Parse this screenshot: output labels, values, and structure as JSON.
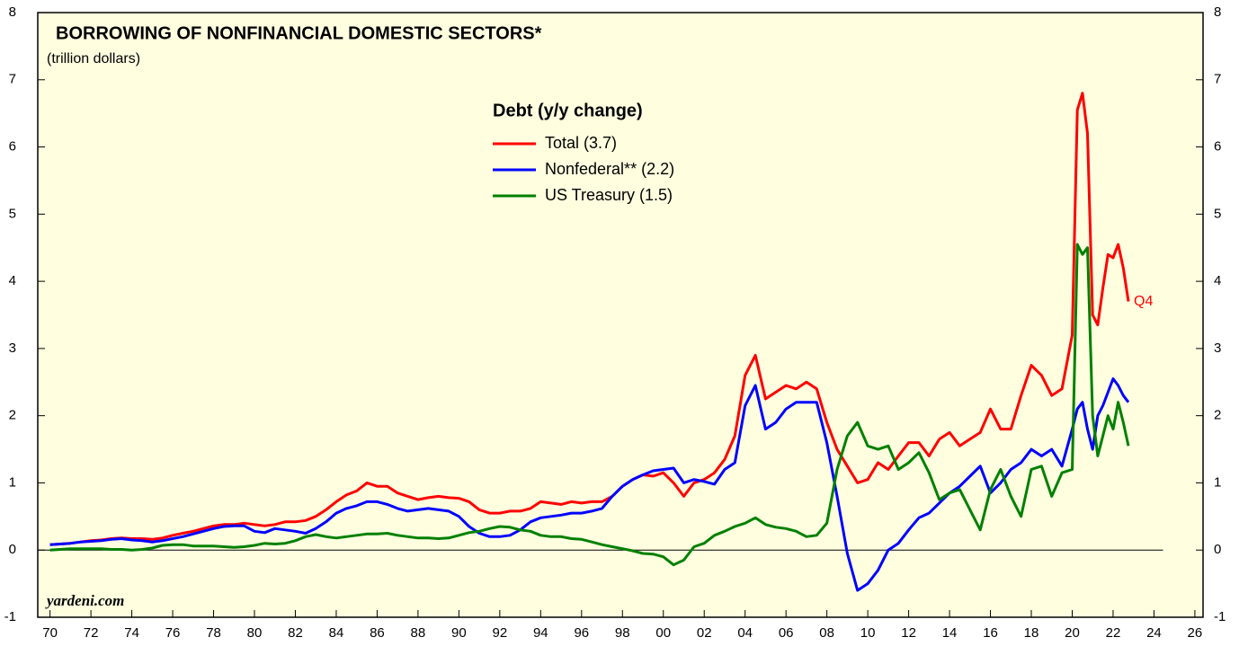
{
  "chart_data": {
    "type": "line",
    "title": "BORROWING OF NONFINANCIAL DOMESTIC SECTORS*",
    "subtitle": "(trillion dollars)",
    "legend_title": "Debt (y/y change)",
    "legend": "upper center",
    "source": "yardeni.com",
    "annotation": "Q4",
    "hline": 0,
    "xlim": [
      1969.4,
      2026.4
    ],
    "ylim": [
      -1,
      8
    ],
    "yticks": [
      -1,
      0,
      1,
      2,
      3,
      4,
      5,
      6,
      7,
      8
    ],
    "xticks": [
      {
        "value": 1970,
        "label": "70"
      },
      {
        "value": 1972,
        "label": "72"
      },
      {
        "value": 1974,
        "label": "74"
      },
      {
        "value": 1976,
        "label": "76"
      },
      {
        "value": 1978,
        "label": "78"
      },
      {
        "value": 1980,
        "label": "80"
      },
      {
        "value": 1982,
        "label": "82"
      },
      {
        "value": 1984,
        "label": "84"
      },
      {
        "value": 1986,
        "label": "86"
      },
      {
        "value": 1988,
        "label": "88"
      },
      {
        "value": 1990,
        "label": "90"
      },
      {
        "value": 1992,
        "label": "92"
      },
      {
        "value": 1994,
        "label": "94"
      },
      {
        "value": 1996,
        "label": "96"
      },
      {
        "value": 1998,
        "label": "98"
      },
      {
        "value": 2000,
        "label": "00"
      },
      {
        "value": 2002,
        "label": "02"
      },
      {
        "value": 2004,
        "label": "04"
      },
      {
        "value": 2006,
        "label": "06"
      },
      {
        "value": 2008,
        "label": "08"
      },
      {
        "value": 2010,
        "label": "10"
      },
      {
        "value": 2012,
        "label": "12"
      },
      {
        "value": 2014,
        "label": "14"
      },
      {
        "value": 2016,
        "label": "16"
      },
      {
        "value": 2018,
        "label": "18"
      },
      {
        "value": 2020,
        "label": "20"
      },
      {
        "value": 2022,
        "label": "22"
      },
      {
        "value": 2024,
        "label": "24"
      },
      {
        "value": 2026,
        "label": "26"
      }
    ],
    "x": [
      1970,
      1970.5,
      1971,
      1971.5,
      1972,
      1972.5,
      1973,
      1973.5,
      1974,
      1974.5,
      1975,
      1975.5,
      1976,
      1976.5,
      1977,
      1977.5,
      1978,
      1978.5,
      1979,
      1979.5,
      1980,
      1980.5,
      1981,
      1981.5,
      1982,
      1982.5,
      1983,
      1983.5,
      1984,
      1984.5,
      1985,
      1985.5,
      1986,
      1986.5,
      1987,
      1987.5,
      1988,
      1988.5,
      1989,
      1989.5,
      1990,
      1990.5,
      1991,
      1991.5,
      1992,
      1992.5,
      1993,
      1993.5,
      1994,
      1994.5,
      1995,
      1995.5,
      1996,
      1996.5,
      1997,
      1997.5,
      1998,
      1998.5,
      1999,
      1999.5,
      2000,
      2000.5,
      2001,
      2001.5,
      2002,
      2002.5,
      2003,
      2003.5,
      2004,
      2004.5,
      2005,
      2005.5,
      2006,
      2006.5,
      2007,
      2007.5,
      2008,
      2008.5,
      2009,
      2009.5,
      2010,
      2010.5,
      2011,
      2011.5,
      2012,
      2012.5,
      2013,
      2013.5,
      2014,
      2014.5,
      2015,
      2015.5,
      2016,
      2016.5,
      2017,
      2017.5,
      2018,
      2018.5,
      2019,
      2019.5,
      2020,
      2020.25,
      2020.5,
      2020.75,
      2021,
      2021.25,
      2021.5,
      2021.75,
      2022,
      2022.25,
      2022.5,
      2022.75
    ],
    "series": [
      {
        "name": "Total (3.7)",
        "color": "#ff0000",
        "values": [
          0.08,
          0.09,
          0.1,
          0.12,
          0.14,
          0.15,
          0.17,
          0.18,
          0.17,
          0.17,
          0.16,
          0.18,
          0.22,
          0.25,
          0.28,
          0.32,
          0.36,
          0.38,
          0.38,
          0.4,
          0.38,
          0.36,
          0.38,
          0.42,
          0.42,
          0.44,
          0.5,
          0.6,
          0.72,
          0.82,
          0.88,
          1.0,
          0.95,
          0.95,
          0.85,
          0.8,
          0.75,
          0.78,
          0.8,
          0.78,
          0.77,
          0.72,
          0.6,
          0.55,
          0.55,
          0.58,
          0.58,
          0.62,
          0.72,
          0.7,
          0.68,
          0.72,
          0.7,
          0.72,
          0.72,
          0.8,
          0.95,
          1.05,
          1.12,
          1.1,
          1.15,
          1.0,
          0.8,
          1.0,
          1.05,
          1.15,
          1.35,
          1.7,
          2.6,
          2.9,
          2.25,
          2.35,
          2.45,
          2.4,
          2.5,
          2.4,
          1.9,
          1.5,
          1.25,
          1.0,
          1.05,
          1.3,
          1.2,
          1.4,
          1.6,
          1.6,
          1.4,
          1.65,
          1.75,
          1.55,
          1.65,
          1.75,
          2.1,
          1.8,
          1.8,
          2.3,
          2.75,
          2.6,
          2.3,
          2.4,
          3.2,
          6.55,
          6.8,
          6.2,
          3.5,
          3.35,
          3.9,
          4.4,
          4.35,
          4.55,
          4.2,
          3.7
        ]
      },
      {
        "name": "Nonfederal** (2.2)",
        "color": "#0000ff",
        "values": [
          0.08,
          0.09,
          0.1,
          0.12,
          0.13,
          0.14,
          0.16,
          0.17,
          0.15,
          0.14,
          0.12,
          0.14,
          0.17,
          0.2,
          0.24,
          0.28,
          0.32,
          0.35,
          0.36,
          0.36,
          0.28,
          0.26,
          0.32,
          0.3,
          0.28,
          0.25,
          0.32,
          0.42,
          0.55,
          0.62,
          0.66,
          0.72,
          0.72,
          0.68,
          0.62,
          0.58,
          0.6,
          0.62,
          0.6,
          0.58,
          0.5,
          0.35,
          0.25,
          0.2,
          0.2,
          0.22,
          0.3,
          0.42,
          0.48,
          0.5,
          0.52,
          0.55,
          0.55,
          0.58,
          0.62,
          0.8,
          0.95,
          1.05,
          1.12,
          1.18,
          1.2,
          1.22,
          1.0,
          1.05,
          1.02,
          0.98,
          1.2,
          1.3,
          2.15,
          2.45,
          1.8,
          1.9,
          2.1,
          2.2,
          2.2,
          2.2,
          1.6,
          0.8,
          -0.05,
          -0.6,
          -0.5,
          -0.3,
          0.0,
          0.1,
          0.3,
          0.48,
          0.55,
          0.7,
          0.85,
          0.95,
          1.1,
          1.25,
          0.85,
          1.0,
          1.2,
          1.3,
          1.5,
          1.4,
          1.5,
          1.25,
          1.8,
          2.1,
          2.2,
          1.8,
          1.5,
          2.0,
          2.15,
          2.35,
          2.55,
          2.45,
          2.3,
          2.2
        ]
      },
      {
        "name": "US Treasury (1.5)",
        "color": "#008000",
        "values": [
          0.0,
          0.01,
          0.02,
          0.02,
          0.02,
          0.02,
          0.01,
          0.01,
          0.0,
          0.01,
          0.03,
          0.07,
          0.08,
          0.08,
          0.06,
          0.06,
          0.06,
          0.05,
          0.04,
          0.05,
          0.07,
          0.1,
          0.09,
          0.1,
          0.14,
          0.2,
          0.23,
          0.2,
          0.18,
          0.2,
          0.22,
          0.24,
          0.24,
          0.25,
          0.22,
          0.2,
          0.18,
          0.18,
          0.17,
          0.18,
          0.22,
          0.26,
          0.28,
          0.32,
          0.35,
          0.34,
          0.3,
          0.28,
          0.22,
          0.2,
          0.2,
          0.17,
          0.16,
          0.12,
          0.08,
          0.05,
          0.02,
          -0.01,
          -0.05,
          -0.06,
          -0.1,
          -0.22,
          -0.15,
          0.05,
          0.1,
          0.22,
          0.28,
          0.35,
          0.4,
          0.48,
          0.38,
          0.34,
          0.32,
          0.28,
          0.2,
          0.22,
          0.4,
          1.2,
          1.7,
          1.9,
          1.55,
          1.5,
          1.55,
          1.2,
          1.3,
          1.45,
          1.15,
          0.75,
          0.85,
          0.9,
          0.6,
          0.3,
          0.9,
          1.2,
          0.8,
          0.5,
          1.2,
          1.25,
          0.8,
          1.15,
          1.2,
          4.55,
          4.4,
          4.5,
          2.0,
          1.4,
          1.7,
          2.0,
          1.8,
          2.2,
          1.9,
          1.55
        ]
      }
    ]
  }
}
